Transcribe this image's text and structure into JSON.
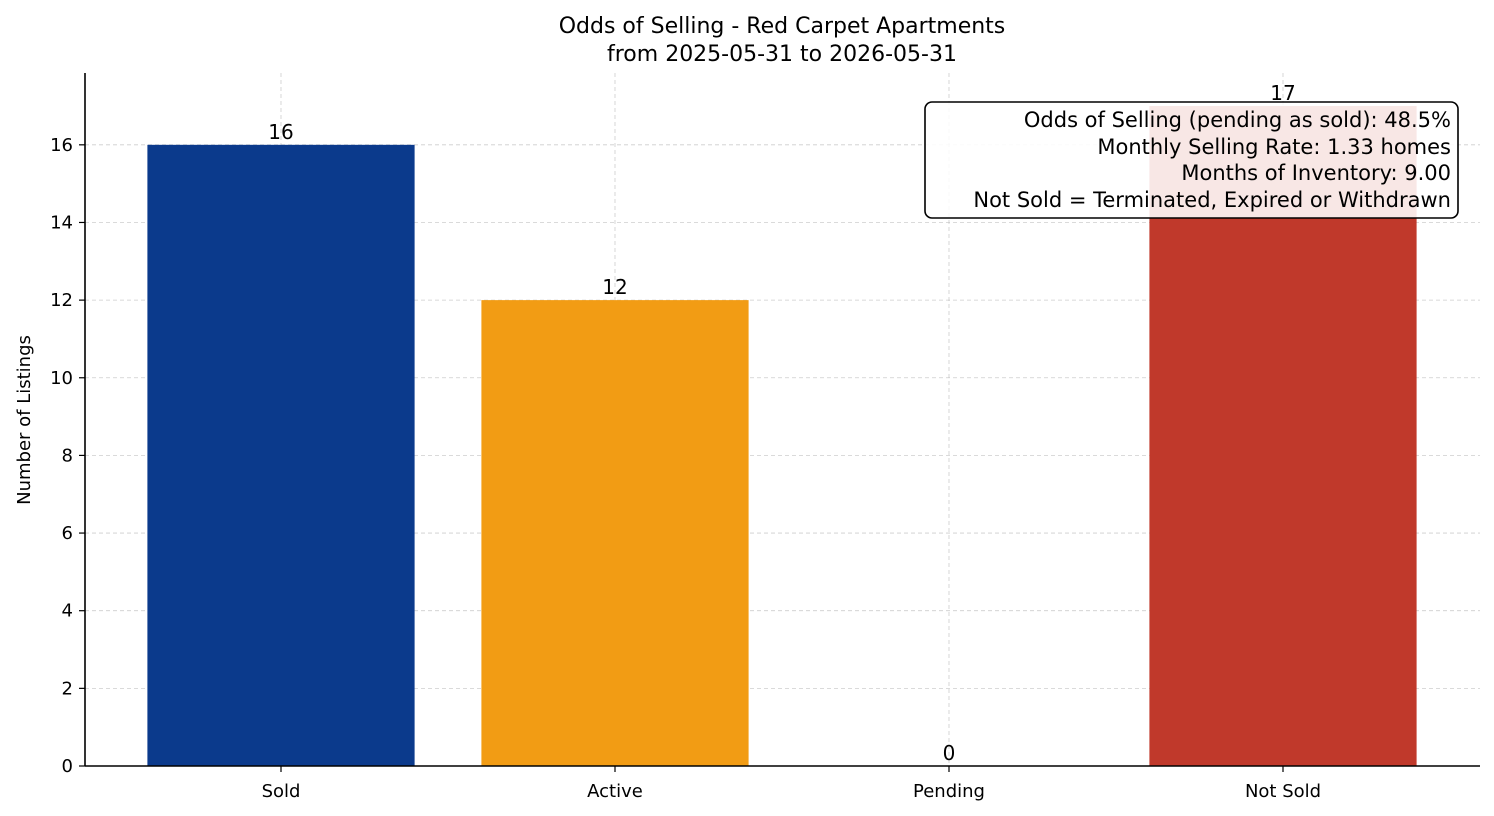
{
  "chart_data": {
    "type": "bar",
    "title": "Odds of Selling - Red Carpet Apartments",
    "subtitle": "from 2025-05-31 to 2026-05-31",
    "xlabel": "",
    "ylabel": "Number of Listings",
    "categories": [
      "Sold",
      "Active",
      "Pending",
      "Not Sold"
    ],
    "values": [
      16,
      12,
      0,
      17
    ],
    "colors": [
      "#0b3a8c",
      "#f29c14",
      "#f29c14",
      "#c0392b"
    ],
    "ylim": [
      0,
      17.85
    ],
    "yticks": [
      0,
      2,
      4,
      6,
      8,
      10,
      12,
      14,
      16
    ],
    "grid": true,
    "info_box": {
      "placement": "top-right",
      "lines": [
        "Odds of Selling (pending as sold): 48.5%",
        "Monthly Selling Rate: 1.33 homes",
        "Months of Inventory: 9.00",
        "Not Sold = Terminated, Expired or Withdrawn"
      ]
    }
  }
}
